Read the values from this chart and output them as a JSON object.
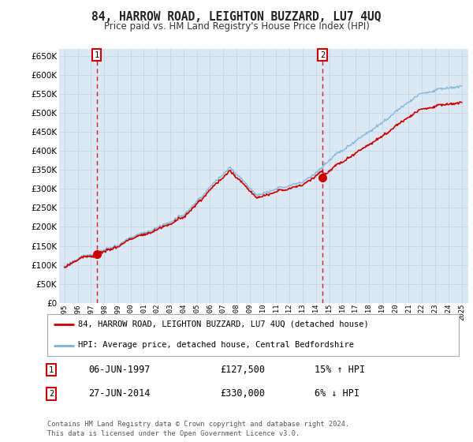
{
  "title": "84, HARROW ROAD, LEIGHTON BUZZARD, LU7 4UQ",
  "subtitle": "Price paid vs. HM Land Registry's House Price Index (HPI)",
  "legend_label_red": "84, HARROW ROAD, LEIGHTON BUZZARD, LU7 4UQ (detached house)",
  "legend_label_blue": "HPI: Average price, detached house, Central Bedfordshire",
  "transaction1": {
    "date": "06-JUN-1997",
    "price": 127500,
    "hpi_diff": "15% ↑ HPI"
  },
  "transaction2": {
    "date": "27-JUN-2014",
    "price": 330000,
    "hpi_diff": "6% ↓ HPI"
  },
  "footnote": "Contains HM Land Registry data © Crown copyright and database right 2024.\nThis data is licensed under the Open Government Licence v3.0.",
  "background_color": "#ffffff",
  "plot_bg_color": "#dce9f5",
  "grid_color": "#c8d8e8",
  "red_color": "#cc0000",
  "blue_color": "#7ab4d8",
  "ylim": [
    0,
    670000
  ],
  "ytick_step": 50000,
  "x_start_year": 1995,
  "x_end_year": 2025,
  "sale1_year": 1997.44,
  "sale1_price": 127500,
  "sale2_year": 2014.49,
  "sale2_price": 330000
}
